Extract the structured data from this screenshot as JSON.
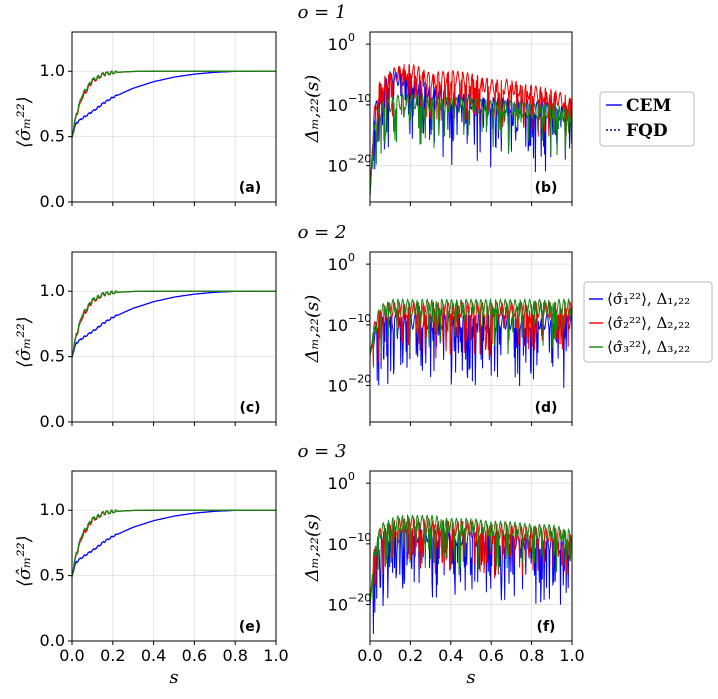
{
  "figure": {
    "colors": {
      "blue": "#0000ff",
      "red": "#ee0000",
      "green": "#118811",
      "grid": "#dddddd"
    },
    "x_label": "s",
    "x_ticks": [
      "0.0",
      "0.2",
      "0.4",
      "0.6",
      "0.8",
      "1.0"
    ],
    "left_ylabel": "⟨σ̂ₘ²²⟩",
    "right_ylabel": "Δₘ,₂₂(s)",
    "left_yticks": [
      "0.0",
      "0.5",
      "1.0"
    ],
    "right_yticks": [
      "10",
      "10",
      "10"
    ],
    "right_ytick_exponents": [
      "0",
      "−10",
      "−20"
    ],
    "legend_method": [
      {
        "label": "CEM",
        "color": "#0000ff",
        "style": "solid"
      },
      {
        "label": "FQD",
        "color": "#000080",
        "style": "dashed"
      }
    ],
    "legend_series": [
      {
        "label": "⟨σ̂₁²²⟩, Δ₁,₂₂",
        "color": "#0000ff"
      },
      {
        "label": "⟨σ̂₂²²⟩, Δ₂,₂₂",
        "color": "#ee0000"
      },
      {
        "label": "⟨σ̂₃²²⟩, Δ₃,₂₂",
        "color": "#118811"
      }
    ]
  },
  "chart_data": [
    {
      "type": "line",
      "panel": "(a)",
      "row_title": "o = 1",
      "title": "",
      "xlabel": "",
      "ylabel": "⟨σ̂ₘ²²⟩",
      "xlim": [
        0,
        1
      ],
      "ylim": [
        0,
        1.3
      ],
      "x": [
        0,
        0.02,
        0.05,
        0.1,
        0.15,
        0.2,
        0.3,
        0.4,
        0.5,
        0.6,
        0.7,
        0.8,
        0.9,
        1.0
      ],
      "series": [
        {
          "name": "⟨σ̂₁²²⟩",
          "values": [
            0.5,
            0.6,
            0.64,
            0.69,
            0.75,
            0.8,
            0.87,
            0.92,
            0.955,
            0.978,
            0.992,
            0.999,
            1.0,
            1.0
          ]
        },
        {
          "name": "⟨σ̂₂²²⟩",
          "values": [
            0.5,
            0.65,
            0.8,
            0.92,
            0.97,
            0.99,
            0.998,
            1.0,
            1.0,
            1.0,
            1.0,
            1.0,
            1.0,
            1.0
          ]
        },
        {
          "name": "⟨σ̂₃²²⟩",
          "values": [
            0.5,
            0.66,
            0.82,
            0.93,
            0.975,
            0.99,
            0.999,
            1.0,
            1.0,
            1.0,
            1.0,
            1.0,
            1.0,
            1.0
          ]
        }
      ]
    },
    {
      "type": "line",
      "panel": "(b)",
      "title": "",
      "xlabel": "",
      "ylabel": "Δₘ,₂₂(s)",
      "yscale": "log",
      "xlim": [
        0,
        1
      ],
      "ylim": [
        -26,
        2
      ],
      "x": [
        0,
        0.02,
        0.05,
        0.1,
        0.15,
        0.2,
        0.25,
        0.3,
        0.4,
        0.5,
        0.6,
        0.7,
        0.8,
        0.9,
        1.0
      ],
      "series": [
        {
          "name": "Δ₁,₂₂",
          "values": [
            -25,
            -12,
            -8,
            -6,
            -5.5,
            -6,
            -7,
            -8,
            -9,
            -9.5,
            -10,
            -10,
            -10.5,
            -11,
            -12
          ]
        },
        {
          "name": "Δ₂,₂₂",
          "values": [
            -25,
            -12,
            -7,
            -5.5,
            -4.5,
            -4.5,
            -5,
            -6,
            -5.5,
            -6,
            -7,
            -7,
            -8,
            -8.5,
            -10
          ]
        },
        {
          "name": "Δ₃,₂₂",
          "values": [
            -25,
            -14,
            -11,
            -10,
            -9.5,
            -9.5,
            -9.5,
            -10,
            -10,
            -10,
            -10.5,
            -10.5,
            -11,
            -11,
            -12
          ]
        }
      ]
    },
    {
      "type": "line",
      "panel": "(c)",
      "row_title": "o = 2",
      "title": "",
      "xlabel": "",
      "ylabel": "⟨σ̂ₘ²²⟩",
      "xlim": [
        0,
        1
      ],
      "ylim": [
        0,
        1.3
      ],
      "x": [
        0,
        0.02,
        0.05,
        0.1,
        0.15,
        0.2,
        0.3,
        0.4,
        0.5,
        0.6,
        0.7,
        0.8,
        0.9,
        1.0
      ],
      "series": [
        {
          "name": "⟨σ̂₁²²⟩",
          "values": [
            0.5,
            0.6,
            0.64,
            0.69,
            0.75,
            0.8,
            0.87,
            0.92,
            0.955,
            0.978,
            0.992,
            0.999,
            1.0,
            1.0
          ]
        },
        {
          "name": "⟨σ̂₂²²⟩",
          "values": [
            0.5,
            0.65,
            0.8,
            0.92,
            0.97,
            0.99,
            0.998,
            1.0,
            1.0,
            1.0,
            1.0,
            1.0,
            1.0,
            1.0
          ]
        },
        {
          "name": "⟨σ̂₃²²⟩",
          "values": [
            0.5,
            0.66,
            0.82,
            0.93,
            0.975,
            0.99,
            0.999,
            1.0,
            1.0,
            1.0,
            1.0,
            1.0,
            1.0,
            1.0
          ]
        }
      ]
    },
    {
      "type": "line",
      "panel": "(d)",
      "title": "",
      "xlabel": "",
      "ylabel": "Δₘ,₂₂(s)",
      "yscale": "log",
      "xlim": [
        0,
        1
      ],
      "ylim": [
        -26,
        2
      ],
      "x": [
        0,
        0.02,
        0.05,
        0.1,
        0.15,
        0.2,
        0.3,
        0.4,
        0.5,
        0.6,
        0.7,
        0.8,
        0.9,
        1.0
      ],
      "series": [
        {
          "name": "Δ₁,₂₂",
          "values": [
            -15,
            -12,
            -9,
            -9.5,
            -9.5,
            -9.5,
            -9.5,
            -9.5,
            -9.5,
            -9.5,
            -9.5,
            -9.5,
            -9.5,
            -9.5
          ]
        },
        {
          "name": "Δ₂,₂₂",
          "values": [
            -15,
            -11,
            -8.5,
            -7.5,
            -7.5,
            -7.5,
            -7.5,
            -7.5,
            -7.5,
            -7.5,
            -7.5,
            -7.5,
            -7.5,
            -7.5
          ]
        },
        {
          "name": "Δ₃,₂₂",
          "values": [
            -15,
            -11,
            -8,
            -7,
            -7,
            -7,
            -7,
            -7,
            -7,
            -7,
            -7,
            -7,
            -7,
            -7
          ]
        }
      ]
    },
    {
      "type": "line",
      "panel": "(e)",
      "row_title": "o = 3",
      "title": "",
      "xlabel": "s",
      "ylabel": "⟨σ̂ₘ²²⟩",
      "xlim": [
        0,
        1
      ],
      "ylim": [
        0,
        1.3
      ],
      "x": [
        0,
        0.02,
        0.05,
        0.1,
        0.15,
        0.2,
        0.3,
        0.4,
        0.5,
        0.6,
        0.7,
        0.8,
        0.9,
        1.0
      ],
      "series": [
        {
          "name": "⟨σ̂₁²²⟩",
          "values": [
            0.5,
            0.6,
            0.64,
            0.69,
            0.75,
            0.8,
            0.87,
            0.92,
            0.955,
            0.978,
            0.992,
            0.999,
            1.0,
            1.0
          ]
        },
        {
          "name": "⟨σ̂₂²²⟩",
          "values": [
            0.5,
            0.65,
            0.8,
            0.92,
            0.97,
            0.99,
            0.998,
            1.0,
            1.0,
            1.0,
            1.0,
            1.0,
            1.0,
            1.0
          ]
        },
        {
          "name": "⟨σ̂₃²²⟩",
          "values": [
            0.5,
            0.66,
            0.82,
            0.93,
            0.975,
            0.99,
            0.999,
            1.0,
            1.0,
            1.0,
            1.0,
            1.0,
            1.0,
            1.0
          ]
        }
      ]
    },
    {
      "type": "line",
      "panel": "(f)",
      "title": "",
      "xlabel": "s",
      "ylabel": "Δₘ,₂₂(s)",
      "yscale": "log",
      "xlim": [
        0,
        1
      ],
      "ylim": [
        -26,
        2
      ],
      "x": [
        0,
        0.02,
        0.05,
        0.1,
        0.15,
        0.2,
        0.3,
        0.4,
        0.5,
        0.6,
        0.7,
        0.8,
        0.9,
        1.0
      ],
      "series": [
        {
          "name": "Δ₁,₂₂",
          "values": [
            -20,
            -13,
            -9.5,
            -9,
            -8.5,
            -8.5,
            -8.5,
            -9,
            -9,
            -9.5,
            -9.5,
            -10,
            -10,
            -11
          ]
        },
        {
          "name": "Δ₂,₂₂",
          "values": [
            -20,
            -12,
            -8.5,
            -7.5,
            -7,
            -7,
            -7,
            -7.5,
            -7.5,
            -8,
            -8,
            -8.5,
            -8.5,
            -9.5
          ]
        },
        {
          "name": "Δ₃,₂₂",
          "values": [
            -20,
            -12,
            -8,
            -7,
            -6.5,
            -6.5,
            -6.5,
            -7,
            -7,
            -7.5,
            -7.5,
            -8,
            -8,
            -9
          ]
        }
      ]
    }
  ]
}
